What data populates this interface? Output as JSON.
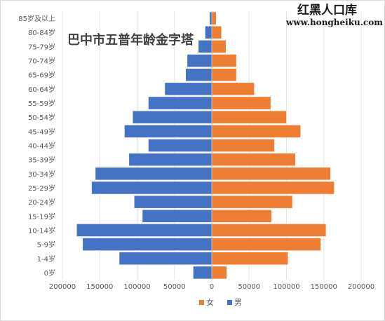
{
  "watermark": {
    "title": "红黑人口库",
    "url": "www.hongheiku.com"
  },
  "chart_data": {
    "type": "bar",
    "orientation": "horizontal",
    "title": "巴中市五普年龄金字塔",
    "categories": [
      "0岁",
      "1-4岁",
      "5-9岁",
      "10-14岁",
      "15-19岁",
      "20-24岁",
      "25-29岁",
      "30-34岁",
      "35-39岁",
      "40-44岁",
      "45-49岁",
      "50-54岁",
      "55-59岁",
      "60-64岁",
      "65-69岁",
      "70-74岁",
      "75-79岁",
      "80-84岁",
      "85岁及以上"
    ],
    "series": [
      {
        "name": "女",
        "color": "#ED7D31",
        "values": [
          20000,
          102000,
          146000,
          153000,
          80000,
          108000,
          164000,
          159000,
          112000,
          84000,
          119000,
          100000,
          79000,
          57000,
          33000,
          33000,
          19000,
          13000,
          6000
        ]
      },
      {
        "name": "男",
        "color": "#4472C4",
        "values": [
          -25000,
          -124000,
          -173000,
          -181000,
          -93000,
          -104000,
          -161000,
          -156000,
          -111000,
          -85000,
          -117000,
          -106000,
          -85000,
          -63000,
          -35000,
          -33000,
          -18000,
          -9000,
          -3000
        ]
      }
    ],
    "xlim": [
      -200000,
      200000
    ],
    "xticks": [
      -200000,
      -150000,
      -100000,
      -50000,
      0,
      50000,
      100000,
      150000,
      200000
    ],
    "xtick_labels": [
      "200000",
      "150000",
      "100000",
      "50000",
      "0",
      "50000",
      "100000",
      "150000",
      "200000"
    ],
    "legend": {
      "position": "bottom",
      "items": [
        "女",
        "男"
      ]
    },
    "grid": {
      "vertical": true,
      "horizontal": false
    }
  }
}
